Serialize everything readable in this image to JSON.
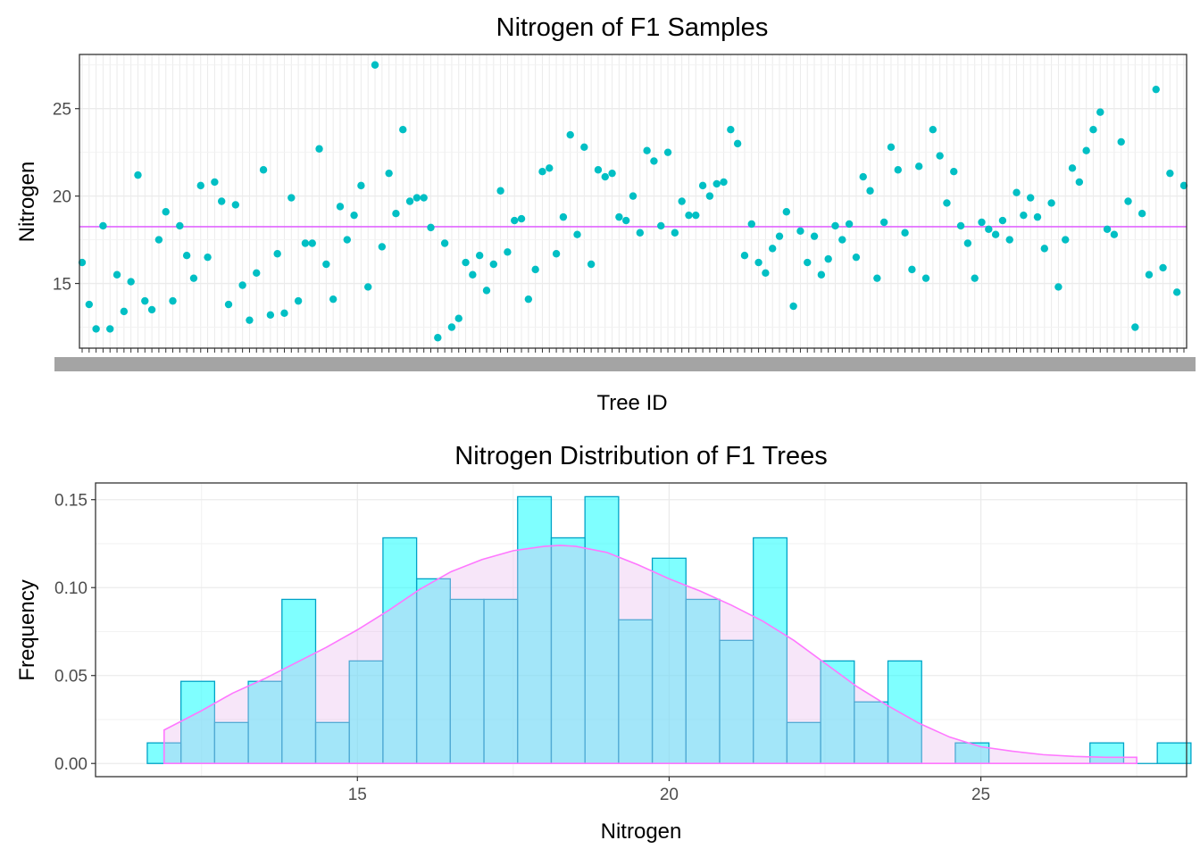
{
  "chart_data": [
    {
      "type": "scatter",
      "title": "Nitrogen of F1 Samples",
      "xlabel": "Tree ID",
      "ylabel": "Nitrogen",
      "ylim": [
        11.3,
        28.1
      ],
      "yticks": [
        15,
        20,
        25
      ],
      "reference_line": 18.25,
      "grid": true,
      "point_color": "#00BFC4",
      "line_color": "#E066FF",
      "values": [
        16.2,
        13.8,
        12.4,
        18.3,
        12.4,
        15.5,
        13.4,
        15.1,
        21.2,
        14.0,
        13.5,
        17.5,
        19.1,
        14.0,
        18.3,
        16.6,
        15.3,
        20.6,
        16.5,
        20.8,
        19.7,
        13.8,
        19.5,
        14.9,
        12.9,
        15.6,
        21.5,
        13.2,
        16.7,
        13.3,
        19.9,
        14.0,
        17.3,
        17.3,
        22.7,
        16.1,
        14.1,
        19.4,
        17.5,
        18.9,
        20.6,
        14.8,
        27.5,
        17.1,
        21.3,
        19.0,
        23.8,
        19.7,
        19.9,
        19.9,
        18.2,
        11.9,
        17.3,
        12.5,
        13.0,
        16.2,
        15.5,
        16.6,
        14.6,
        16.1,
        20.3,
        16.8,
        18.6,
        18.7,
        14.1,
        15.8,
        21.4,
        21.6,
        16.7,
        18.8,
        23.5,
        17.8,
        22.8,
        16.1,
        21.5,
        21.1,
        21.3,
        18.8,
        18.6,
        20.0,
        17.9,
        22.6,
        22.0,
        18.3,
        22.5,
        17.9,
        19.7,
        18.9,
        18.9,
        20.6,
        20.0,
        20.7,
        20.8,
        23.8,
        23.0,
        16.6,
        18.4,
        16.2,
        15.6,
        17.0,
        17.7,
        19.1,
        13.7,
        18.0,
        16.2,
        17.7,
        15.5,
        16.4,
        18.3,
        17.5,
        18.4,
        16.5,
        21.1,
        20.3,
        15.3,
        18.5,
        22.8,
        21.5,
        17.9,
        15.8,
        21.7,
        15.3,
        23.8,
        22.3,
        19.6,
        21.4,
        18.3,
        17.3,
        15.3,
        18.5,
        18.1,
        17.8,
        18.6,
        17.5,
        20.2,
        18.9,
        19.9,
        18.8,
        17.0,
        19.6,
        14.8,
        17.5,
        21.6,
        20.8,
        22.6,
        23.8,
        24.8,
        18.1,
        17.8,
        23.1,
        19.7,
        12.5,
        19.0,
        15.5,
        26.1,
        15.9,
        21.3,
        14.5,
        20.6
      ]
    },
    {
      "type": "bar",
      "title": "Nitrogen Distribution of F1 Trees",
      "xlabel": "Nitrogen",
      "ylabel": "Frequency",
      "xlim": [
        10.8,
        28.3
      ],
      "ylim": [
        -0.0075,
        0.1595
      ],
      "xticks": [
        15,
        20,
        25
      ],
      "yticks": [
        0.0,
        0.05,
        0.1,
        0.15
      ],
      "ytick_labels": [
        "0.00",
        "0.05",
        "0.10",
        "0.15"
      ],
      "bin_width": 0.54,
      "bin_start": 11.63,
      "values": [
        0.0117,
        0.0467,
        0.0233,
        0.0467,
        0.0933,
        0.0233,
        0.0583,
        0.1283,
        0.105,
        0.0933,
        0.0933,
        0.1517,
        0.1283,
        0.1517,
        0.0817,
        0.1167,
        0.0933,
        0.07,
        0.1283,
        0.0233,
        0.0583,
        0.035,
        0.0583,
        0,
        0.0117,
        0,
        0,
        0,
        0.0117,
        0,
        0.0117
      ],
      "density": {
        "x": [
          11.9,
          12.5,
          13,
          13.5,
          14,
          14.5,
          15,
          15.5,
          16,
          16.5,
          17,
          17.5,
          18,
          18.25,
          18.5,
          19,
          19.5,
          20,
          20.5,
          21,
          21.5,
          22,
          22.5,
          23,
          23.5,
          24,
          24.5,
          25,
          25.5,
          26,
          26.5,
          27,
          27.5
        ],
        "y": [
          0.019,
          0.03,
          0.04,
          0.048,
          0.057,
          0.066,
          0.076,
          0.087,
          0.099,
          0.109,
          0.116,
          0.121,
          0.1235,
          0.124,
          0.1235,
          0.12,
          0.113,
          0.105,
          0.098,
          0.09,
          0.081,
          0.07,
          0.057,
          0.044,
          0.033,
          0.023,
          0.015,
          0.0095,
          0.007,
          0.005,
          0.004,
          0.0035,
          0.0035
        ]
      },
      "bar_fill": "#00FFFF",
      "bar_stroke": "#00A3C7",
      "density_fill": "#E8B8EE",
      "density_stroke": "#FF77FF"
    }
  ]
}
